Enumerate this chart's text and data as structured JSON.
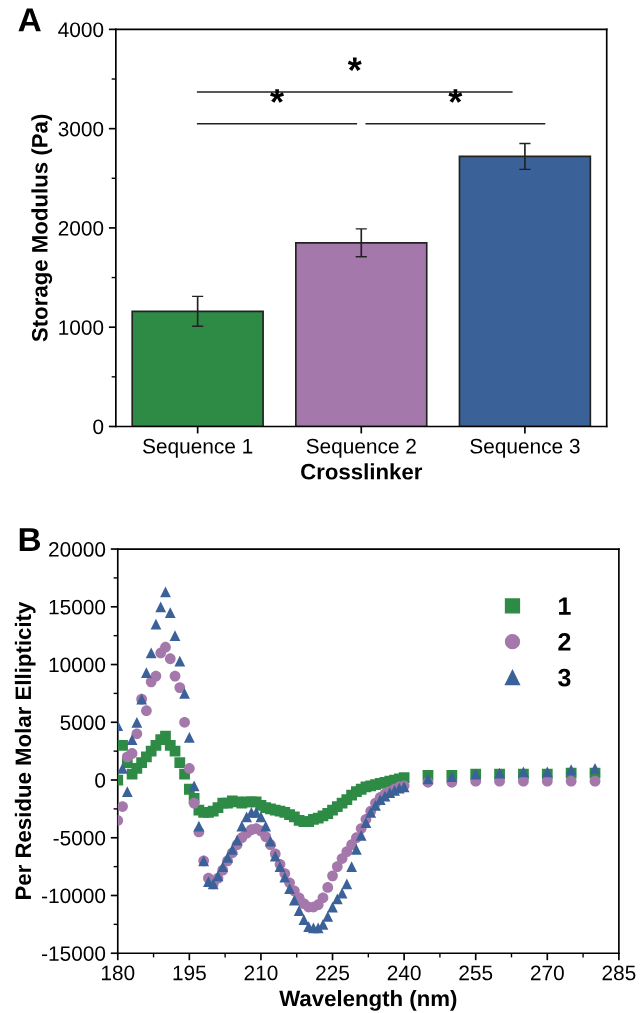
{
  "chart_data": [
    {
      "type": "bar",
      "title": "A",
      "xlabel": "Crosslinker",
      "ylabel": "Storage Modulus (Pa)",
      "categories": [
        "Sequence 1",
        "Sequence 2",
        "Sequence 3"
      ],
      "values": [
        1160,
        1850,
        2720
      ],
      "errors": [
        150,
        140,
        130
      ],
      "colors": [
        "#2e8b45",
        "#a578ac",
        "#3a6198"
      ],
      "ylim": [
        0,
        4000
      ],
      "yticks": [
        0,
        1000,
        2000,
        3000,
        4000
      ],
      "annotations": [
        "*",
        "*",
        "*"
      ],
      "grid": false
    },
    {
      "type": "scatter",
      "title": "B",
      "xlabel": "Wavelength (nm)",
      "ylabel": "Per Residue Molar Ellipticity",
      "x": [
        180,
        181,
        182,
        183,
        184,
        185,
        186,
        187,
        188,
        189,
        190,
        191,
        192,
        193,
        194,
        195,
        196,
        197,
        198,
        199,
        200,
        201,
        202,
        203,
        204,
        205,
        206,
        207,
        208,
        209,
        210,
        211,
        212,
        213,
        214,
        215,
        216,
        217,
        218,
        219,
        220,
        221,
        222,
        223,
        224,
        225,
        226,
        227,
        228,
        229,
        230,
        231,
        232,
        233,
        234,
        235,
        236,
        237,
        238,
        239,
        240,
        245,
        250,
        255,
        260,
        265,
        270,
        275,
        280
      ],
      "series": [
        {
          "name": "1",
          "color": "#2e8b45",
          "marker": "square",
          "values": [
            0,
            3000,
            1500,
            500,
            1000,
            1500,
            2000,
            2500,
            3000,
            3500,
            3800,
            3000,
            2500,
            1500,
            500,
            -800,
            -1600,
            -2600,
            -2800,
            -2800,
            -2700,
            -2400,
            -2000,
            -2000,
            -1800,
            -1900,
            -2000,
            -1900,
            -1900,
            -1900,
            -2200,
            -2400,
            -2500,
            -2600,
            -2700,
            -2800,
            -3000,
            -3200,
            -3500,
            -3600,
            -3600,
            -3400,
            -3300,
            -3100,
            -2900,
            -2600,
            -2300,
            -2000,
            -1700,
            -1300,
            -1000,
            -800,
            -600,
            -500,
            -400,
            -300,
            -200,
            -100,
            0,
            100,
            200,
            400,
            400,
            500,
            500,
            500,
            500,
            600,
            600
          ]
        },
        {
          "name": "2",
          "color": "#a578ac",
          "marker": "circle",
          "values": [
            -3500,
            -2300,
            2000,
            2300,
            4000,
            7000,
            6000,
            8500,
            9000,
            11000,
            11500,
            10500,
            9000,
            8000,
            5000,
            1000,
            -2000,
            -4500,
            -7000,
            -8500,
            -9000,
            -8500,
            -7800,
            -7000,
            -6300,
            -5600,
            -5000,
            -4600,
            -4300,
            -4200,
            -4400,
            -4900,
            -5600,
            -6400,
            -7300,
            -8100,
            -8900,
            -9600,
            -10200,
            -10700,
            -11000,
            -11000,
            -10800,
            -10200,
            -9300,
            -8300,
            -7500,
            -6800,
            -6200,
            -5600,
            -5000,
            -4200,
            -3400,
            -2700,
            -2000,
            -1500,
            -1200,
            -1000,
            -800,
            -600,
            -500,
            -200,
            -200,
            -100,
            -100,
            -100,
            -100,
            -100,
            -100
          ]
        },
        {
          "name": "3",
          "color": "#3a6198",
          "marker": "triangle",
          "values": [
            4700,
            1000,
            -1000,
            3500,
            5000,
            7000,
            9300,
            11000,
            13500,
            15000,
            16300,
            14500,
            12500,
            10300,
            7500,
            3700,
            -500,
            -4000,
            -7000,
            -8800,
            -9000,
            -8300,
            -7500,
            -6700,
            -6000,
            -5200,
            -4000,
            -3200,
            -2800,
            -2800,
            -3200,
            -4000,
            -5300,
            -6600,
            -7500,
            -8400,
            -9400,
            -10400,
            -11300,
            -12100,
            -12700,
            -12800,
            -12800,
            -12500,
            -11800,
            -11000,
            -10300,
            -9800,
            -9000,
            -7500,
            -6000,
            -4800,
            -3700,
            -2800,
            -2200,
            -1700,
            -1400,
            -1100,
            -900,
            -700,
            -600,
            100,
            300,
            500,
            600,
            700,
            700,
            900,
            1000
          ]
        }
      ],
      "xlim": [
        180,
        285
      ],
      "xticks": [
        180,
        195,
        210,
        225,
        240,
        255,
        270,
        285
      ],
      "ylim": [
        -15000,
        20000
      ],
      "yticks": [
        -15000,
        -10000,
        -5000,
        0,
        5000,
        10000,
        15000,
        20000
      ],
      "grid": false,
      "legend": "top right"
    }
  ]
}
